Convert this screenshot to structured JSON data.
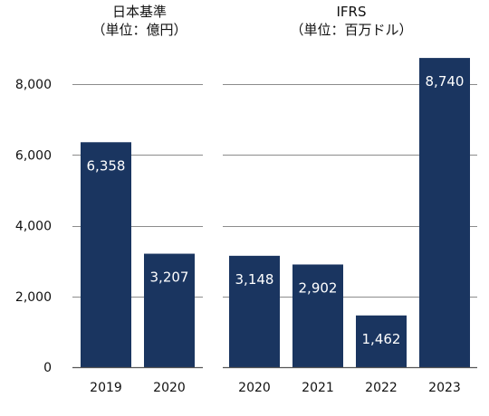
{
  "chart_data": {
    "type": "bar",
    "ylim": [
      0,
      8800
    ],
    "yticks": [
      0,
      2000,
      4000,
      6000,
      8000
    ],
    "ytick_labels": [
      "0",
      "2,000",
      "4,000",
      "6,000",
      "8,000"
    ],
    "grid": true,
    "bar_color": "#1a3560",
    "gridline_color": "#8c8c8c",
    "panels": [
      {
        "title": "日本基準",
        "subtitle": "（単位：億円）",
        "categories": [
          "2019",
          "2020"
        ],
        "values": [
          6358,
          3207
        ],
        "value_labels": [
          "6,358",
          "3,207"
        ]
      },
      {
        "title": "IFRS",
        "subtitle": "（単位：百万ドル）",
        "categories": [
          "2020",
          "2021",
          "2022",
          "2023"
        ],
        "values": [
          3148,
          2902,
          1462,
          8740
        ],
        "value_labels": [
          "3,148",
          "2,902",
          "1,462",
          "8,740"
        ]
      }
    ]
  }
}
